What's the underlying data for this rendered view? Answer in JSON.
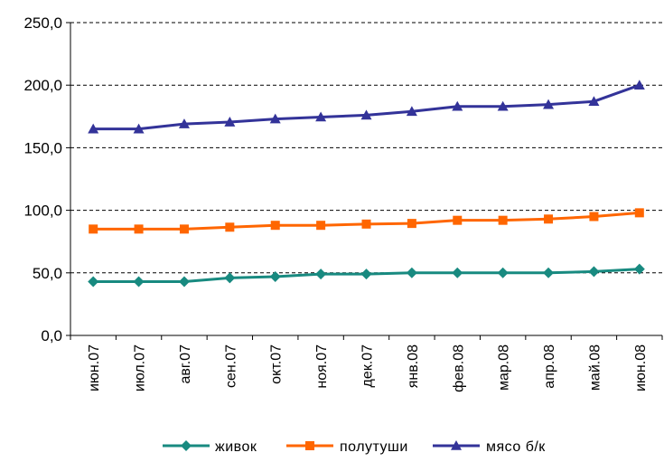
{
  "chart_data": {
    "type": "line",
    "categories": [
      "июн.07",
      "июл.07",
      "авг.07",
      "сен.07",
      "окт.07",
      "ноя.07",
      "дек.07",
      "янв.08",
      "фев.08",
      "мар.08",
      "апр.08",
      "май.08",
      "июн.08"
    ],
    "series": [
      {
        "name": "живок",
        "color": "#188a80",
        "marker": "diamond",
        "values": [
          43,
          43,
          43,
          46,
          47,
          49,
          49,
          50,
          50,
          50,
          50,
          51,
          53
        ]
      },
      {
        "name": "полутуши",
        "color": "#ff6600",
        "marker": "square",
        "values": [
          85,
          85,
          85,
          86.5,
          88,
          88,
          89,
          89.5,
          92,
          92,
          93,
          95,
          98
        ]
      },
      {
        "name": "мясо б/к",
        "color": "#333399",
        "marker": "triangle",
        "values": [
          165,
          165,
          169,
          170.5,
          173,
          174.5,
          176,
          179,
          183,
          183,
          184.5,
          187,
          200
        ]
      }
    ],
    "yticks": [
      "0,0",
      "50,0",
      "100,0",
      "150,0",
      "200,0",
      "250,0"
    ],
    "ylim": [
      0,
      250
    ],
    "grid": "horizontal dashed",
    "legend_position": "bottom",
    "title": "",
    "xlabel": "",
    "ylabel": ""
  }
}
